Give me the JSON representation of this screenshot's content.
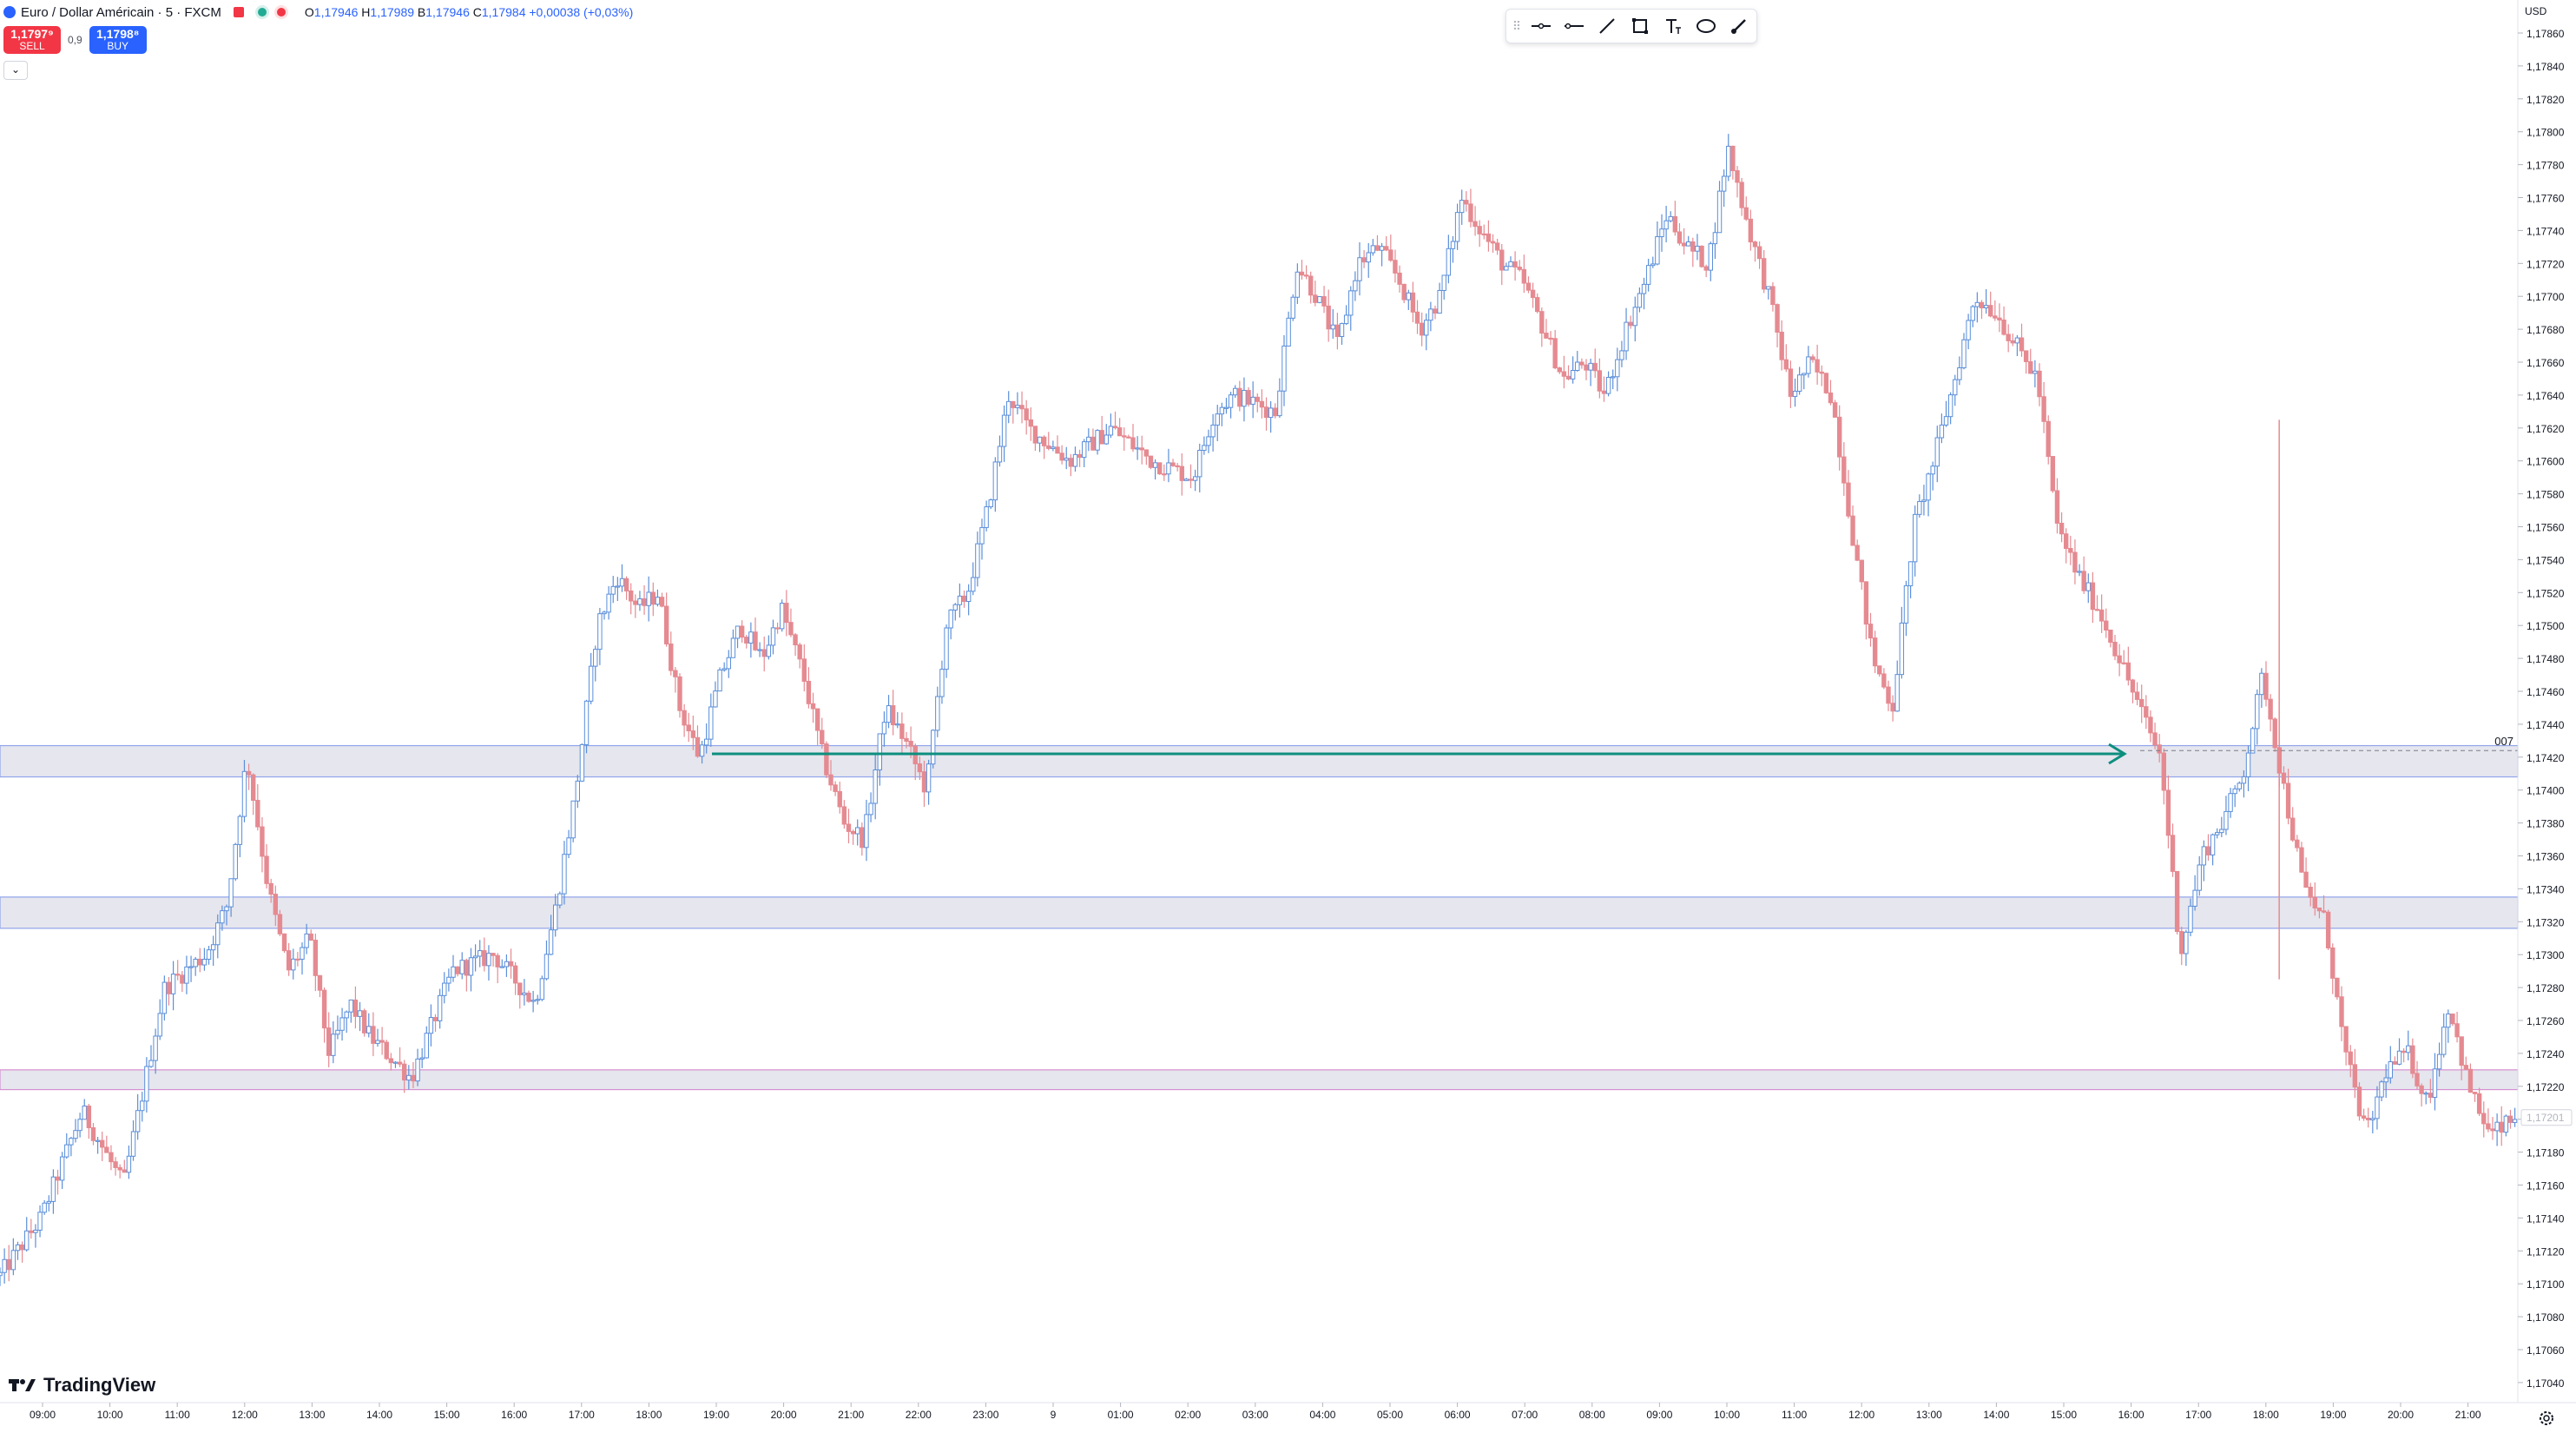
{
  "header": {
    "symbol_title": "Euro / Dollar Américain · 5 · FXCM",
    "ohlc": {
      "o_label": "O",
      "o": "1,17946",
      "h_label": "H",
      "h": "1,17989",
      "l_label": "B",
      "l": "1,17946",
      "c_label": "C",
      "c": "1,17984",
      "change": "+0,00038 (+0,03%)"
    }
  },
  "trade": {
    "sell_price": "1,1797⁹",
    "sell_label": "SELL",
    "spread": "0,9",
    "buy_price": "1,1798⁸",
    "buy_label": "BUY"
  },
  "collapse_glyph": "⌄",
  "toolbar": {
    "icons": [
      "grip-icon",
      "horizontal-line-icon",
      "horizontal-ray-icon",
      "trend-line-icon",
      "rectangle-icon",
      "text-icon",
      "ellipse-icon",
      "brush-icon"
    ]
  },
  "logo": {
    "text": "TradingView"
  },
  "price_axis": {
    "currency": "USD",
    "ticks": [
      "1,17860",
      "1,17840",
      "1,17820",
      "1,17800",
      "1,17780",
      "1,17760",
      "1,17740",
      "1,17720",
      "1,17700",
      "1,17680",
      "1,17660",
      "1,17640",
      "1,17620",
      "1,17600",
      "1,17580",
      "1,17560",
      "1,17540",
      "1,17520",
      "1,17500",
      "1,17480",
      "1,17460",
      "1,17440",
      "1,17420",
      "1,17400",
      "1,17380",
      "1,17360",
      "1,17340",
      "1,17320",
      "1,17300",
      "1,17280",
      "1,17260",
      "1,17240",
      "1,17220",
      "1,17200",
      "1,17180",
      "1,17160",
      "1,17140",
      "1,17120",
      "1,17100",
      "1,17080",
      "1,17060",
      "1,17040"
    ],
    "current_price_label": "1,17201"
  },
  "time_axis": {
    "ticks": [
      "09:00",
      "10:00",
      "11:00",
      "12:00",
      "13:00",
      "14:00",
      "15:00",
      "16:00",
      "17:00",
      "18:00",
      "19:00",
      "20:00",
      "21:00",
      "22:00",
      "23:00",
      "9",
      "01:00",
      "02:00",
      "03:00",
      "04:00",
      "05:00",
      "06:00",
      "07:00",
      "08:00",
      "09:00",
      "10:00",
      "11:00",
      "12:00",
      "13:00",
      "14:00",
      "15:00",
      "16:00",
      "17:00",
      "18:00",
      "19:00",
      "20:00",
      "21:00"
    ]
  },
  "colors": {
    "up": "#5b8fd9",
    "down": "#e58a91",
    "zone_fill": "#e6e6ee",
    "zone_border_blue": "#8fa4ea",
    "zone_border_pink": "#d58fd0",
    "arrow": "#0d8f7e"
  },
  "chart_data": {
    "type": "candlestick",
    "y_range": [
      1.1703,
      1.1787
    ],
    "zones": [
      {
        "top": 1.17427,
        "bottom": 1.17408
      },
      {
        "top": 1.17335,
        "bottom": 1.17316
      },
      {
        "top": 1.1723,
        "bottom": 1.17218
      }
    ],
    "arrow": {
      "from_time": "19:00",
      "to_time": "16:00",
      "price": 1.17422
    },
    "level_label": "007",
    "level_price": 1.17424,
    "path": [
      [
        0,
        1.17105
      ],
      [
        25,
        1.1714
      ],
      [
        50,
        1.17205
      ],
      [
        75,
        1.1716
      ],
      [
        100,
        1.1728
      ],
      [
        125,
        1.173
      ],
      [
        138,
        1.1733
      ],
      [
        150,
        1.1742
      ],
      [
        163,
        1.1734
      ],
      [
        175,
        1.1729
      ],
      [
        188,
        1.1731
      ],
      [
        200,
        1.1724
      ],
      [
        213,
        1.1727
      ],
      [
        225,
        1.1725
      ],
      [
        250,
        1.17225
      ],
      [
        275,
        1.1729
      ],
      [
        300,
        1.173
      ],
      [
        325,
        1.1727
      ],
      [
        338,
        1.1733
      ],
      [
        350,
        1.174
      ],
      [
        363,
        1.175
      ],
      [
        375,
        1.1753
      ],
      [
        388,
        1.1751
      ],
      [
        400,
        1.1752
      ],
      [
        413,
        1.1745
      ],
      [
        425,
        1.1742
      ],
      [
        438,
        1.1747
      ],
      [
        450,
        1.175
      ],
      [
        463,
        1.1748
      ],
      [
        475,
        1.1751
      ],
      [
        488,
        1.1747
      ],
      [
        500,
        1.1742
      ],
      [
        513,
        1.1738
      ],
      [
        525,
        1.1737
      ],
      [
        538,
        1.1745
      ],
      [
        550,
        1.1743
      ],
      [
        563,
        1.174
      ],
      [
        575,
        1.175
      ],
      [
        588,
        1.1752
      ],
      [
        600,
        1.1757
      ],
      [
        613,
        1.1764
      ],
      [
        625,
        1.1762
      ],
      [
        650,
        1.176
      ],
      [
        675,
        1.1762
      ],
      [
        700,
        1.176
      ],
      [
        725,
        1.1759
      ],
      [
        738,
        1.1763
      ],
      [
        750,
        1.1764
      ],
      [
        775,
        1.1763
      ],
      [
        788,
        1.1772
      ],
      [
        800,
        1.177
      ],
      [
        813,
        1.1767
      ],
      [
        825,
        1.1772
      ],
      [
        838,
        1.1773
      ],
      [
        850,
        1.1771
      ],
      [
        863,
        1.1768
      ],
      [
        875,
        1.177
      ],
      [
        888,
        1.1776
      ],
      [
        900,
        1.1774
      ],
      [
        913,
        1.1772
      ],
      [
        925,
        1.1771
      ],
      [
        938,
        1.1768
      ],
      [
        950,
        1.1765
      ],
      [
        963,
        1.1766
      ],
      [
        975,
        1.1764
      ],
      [
        988,
        1.1768
      ],
      [
        1000,
        1.1771
      ],
      [
        1013,
        1.1775
      ],
      [
        1025,
        1.1773
      ],
      [
        1038,
        1.1772
      ],
      [
        1050,
        1.1779
      ],
      [
        1063,
        1.1774
      ],
      [
        1075,
        1.177
      ],
      [
        1088,
        1.1764
      ],
      [
        1100,
        1.1766
      ],
      [
        1113,
        1.1764
      ],
      [
        1125,
        1.1756
      ],
      [
        1138,
        1.1748
      ],
      [
        1150,
        1.1745
      ],
      [
        1163,
        1.1756
      ],
      [
        1175,
        1.176
      ],
      [
        1188,
        1.1765
      ],
      [
        1200,
        1.177
      ],
      [
        1213,
        1.1769
      ],
      [
        1225,
        1.1767
      ],
      [
        1238,
        1.1765
      ],
      [
        1250,
        1.1756
      ],
      [
        1263,
        1.1753
      ],
      [
        1275,
        1.1751
      ],
      [
        1288,
        1.1748
      ],
      [
        1300,
        1.1745
      ],
      [
        1313,
        1.1742
      ],
      [
        1325,
        1.173
      ],
      [
        1338,
        1.1736
      ],
      [
        1350,
        1.1738
      ],
      [
        1363,
        1.1741
      ],
      [
        1375,
        1.1747
      ],
      [
        1388,
        1.174
      ],
      [
        1400,
        1.1734
      ],
      [
        1413,
        1.1732
      ],
      [
        1425,
        1.1724
      ],
      [
        1438,
        1.1719
      ],
      [
        1450,
        1.1723
      ],
      [
        1463,
        1.1724
      ],
      [
        1475,
        1.1721
      ],
      [
        1488,
        1.1727
      ],
      [
        1500,
        1.1722
      ],
      [
        1513,
        1.1719
      ],
      [
        1530,
        1.17201
      ]
    ]
  }
}
